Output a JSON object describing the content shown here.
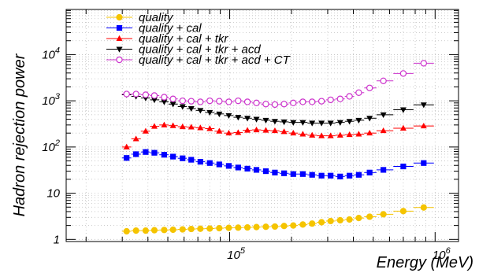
{
  "chart_data": {
    "type": "scatter",
    "title": "",
    "xlabel": "Energy (MeV)",
    "ylabel": "Hadron rejection power",
    "xscale": "log",
    "yscale": "log",
    "xlim": [
      16000,
      1300000
    ],
    "ylim": [
      0.9,
      95000
    ],
    "grid": true,
    "legend_position": "top-left",
    "x_ticks": [
      {
        "value": 100000,
        "label": "10^5"
      },
      {
        "value": 1000000,
        "label": "10^6"
      }
    ],
    "y_ticks": [
      {
        "value": 1,
        "label": "1"
      },
      {
        "value": 10,
        "label": "10"
      },
      {
        "value": 100,
        "label": "10^2"
      },
      {
        "value": 1000,
        "label": "10^3"
      },
      {
        "value": 10000,
        "label": "10^4"
      }
    ],
    "x": [
      31500,
      35000,
      39000,
      43000,
      48000,
      53000,
      59000,
      65000,
      72000,
      80000,
      89000,
      99000,
      110000,
      122000,
      135000,
      150000,
      166000,
      184000,
      204000,
      227000,
      252000,
      280000,
      310000,
      345000,
      383000,
      425000,
      480000,
      560000,
      700000,
      880000
    ],
    "series": [
      {
        "name": "quality",
        "color": "#f5c400",
        "marker": "filled-circle",
        "values": [
          1.5,
          1.55,
          1.55,
          1.58,
          1.6,
          1.62,
          1.65,
          1.68,
          1.7,
          1.72,
          1.75,
          1.78,
          1.8,
          1.82,
          1.85,
          1.88,
          1.9,
          1.95,
          2.0,
          2.1,
          2.2,
          2.35,
          2.5,
          2.6,
          2.7,
          2.9,
          3.1,
          3.5,
          4.1,
          4.9
        ]
      },
      {
        "name": "quality + cal",
        "color": "#0000ff",
        "marker": "filled-square",
        "values": [
          58,
          70,
          78,
          75,
          68,
          62,
          57,
          53,
          48,
          45,
          42,
          39,
          36,
          34,
          32,
          30,
          28,
          27,
          26,
          26,
          25,
          24,
          24,
          23,
          24,
          25,
          28,
          32,
          38,
          45
        ]
      },
      {
        "name": "quality + cal + tkr",
        "color": "#ff0000",
        "marker": "filled-triangle-up",
        "values": [
          100,
          150,
          220,
          280,
          300,
          290,
          275,
          270,
          260,
          250,
          220,
          200,
          205,
          230,
          235,
          230,
          225,
          215,
          200,
          190,
          180,
          175,
          175,
          180,
          185,
          190,
          200,
          225,
          255,
          285
        ]
      },
      {
        "name": "quality + cal + tkr + acd",
        "color": "#000000",
        "marker": "filled-triangle-down",
        "values": [
          1350,
          1250,
          1150,
          1050,
          950,
          850,
          750,
          680,
          620,
          560,
          520,
          480,
          440,
          420,
          400,
          380,
          360,
          350,
          340,
          340,
          330,
          330,
          330,
          340,
          360,
          380,
          420,
          500,
          640,
          820
        ]
      },
      {
        "name": "quality + cal + tkr + acd + CT",
        "color": "#cc33cc",
        "marker": "open-circle",
        "values": [
          1400,
          1400,
          1350,
          1300,
          1200,
          1100,
          1000,
          980,
          950,
          1000,
          980,
          950,
          1000,
          950,
          900,
          850,
          830,
          850,
          900,
          950,
          950,
          980,
          1050,
          1100,
          1250,
          1500,
          1900,
          2700,
          3900,
          6500
        ]
      }
    ]
  }
}
